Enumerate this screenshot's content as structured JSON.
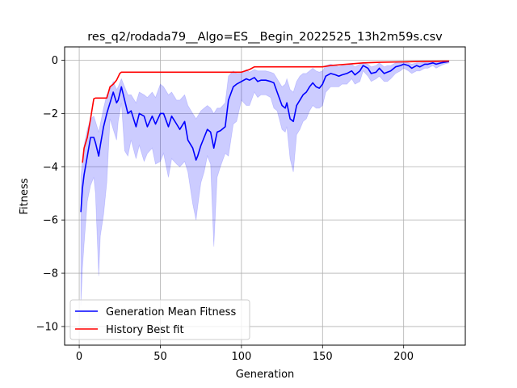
{
  "chart_data": {
    "type": "line",
    "title": "res_q2/rodada79__Algo=ES__Begin_2022525_13h2m59s.csv",
    "xlabel": "Generation",
    "ylabel": "Fitness",
    "xlim": [
      -9,
      238
    ],
    "ylim": [
      -10.7,
      0.5
    ],
    "xticks": [
      0,
      50,
      100,
      150,
      200
    ],
    "yticks": [
      0,
      -2,
      -4,
      -6,
      -8,
      -10
    ],
    "grid": true,
    "legend_position": "lower-left",
    "colors": {
      "mean": "#0000ff",
      "best": "#ff0000",
      "band": "#0000ff"
    },
    "series": [
      {
        "name": "Generation Mean Fitness",
        "x": [
          1,
          2,
          3,
          5,
          7,
          9,
          10,
          12,
          13,
          15,
          17,
          19,
          21,
          23,
          24,
          26,
          28,
          30,
          32,
          35,
          37,
          40,
          42,
          45,
          47,
          50,
          52,
          55,
          57,
          60,
          62,
          65,
          67,
          70,
          72,
          73,
          75,
          77,
          79,
          81,
          83,
          85,
          87,
          90,
          92,
          95,
          97,
          100,
          103,
          105,
          108,
          110,
          112,
          115,
          118,
          120,
          122,
          125,
          127,
          128,
          130,
          132,
          134,
          136,
          138,
          140,
          142,
          144,
          146,
          148,
          150,
          152,
          155,
          158,
          160,
          162,
          165,
          168,
          170,
          173,
          175,
          178,
          180,
          183,
          185,
          188,
          190,
          192,
          195,
          198,
          200,
          203,
          205,
          208,
          210,
          213,
          215,
          218,
          220,
          223,
          225,
          228
        ],
        "y": [
          -5.7,
          -4.8,
          -4.3,
          -3.6,
          -2.9,
          -2.9,
          -3.1,
          -3.6,
          -3.2,
          -2.5,
          -2.0,
          -1.6,
          -1.2,
          -1.6,
          -1.5,
          -1.0,
          -1.5,
          -2.0,
          -1.9,
          -2.5,
          -2.0,
          -2.1,
          -2.5,
          -2.1,
          -2.4,
          -2.0,
          -2.0,
          -2.5,
          -2.1,
          -2.4,
          -2.6,
          -2.3,
          -3.0,
          -3.3,
          -3.75,
          -3.6,
          -3.2,
          -2.9,
          -2.6,
          -2.7,
          -3.3,
          -2.7,
          -2.65,
          -2.5,
          -1.5,
          -1.0,
          -0.9,
          -0.8,
          -0.7,
          -0.75,
          -0.65,
          -0.8,
          -0.75,
          -0.75,
          -0.8,
          -0.85,
          -1.2,
          -1.7,
          -1.8,
          -1.6,
          -2.2,
          -2.3,
          -1.7,
          -1.5,
          -1.3,
          -1.2,
          -1.0,
          -0.85,
          -1.0,
          -1.05,
          -0.9,
          -0.6,
          -0.5,
          -0.55,
          -0.6,
          -0.55,
          -0.5,
          -0.4,
          -0.55,
          -0.4,
          -0.2,
          -0.3,
          -0.5,
          -0.45,
          -0.3,
          -0.5,
          -0.45,
          -0.4,
          -0.25,
          -0.2,
          -0.15,
          -0.2,
          -0.3,
          -0.2,
          -0.25,
          -0.15,
          -0.15,
          -0.1,
          -0.15,
          -0.1,
          -0.08,
          -0.05
        ]
      },
      {
        "name": "History Best fit",
        "x": [
          2,
          3,
          5,
          7,
          9,
          10,
          15,
          17,
          19,
          21,
          23,
          25,
          26,
          40,
          50,
          60,
          80,
          100,
          105,
          108,
          110,
          130,
          150,
          155,
          165,
          175,
          185,
          200,
          210,
          220,
          228
        ],
        "y": [
          -3.85,
          -3.3,
          -2.9,
          -2.2,
          -1.45,
          -1.42,
          -1.42,
          -1.42,
          -1.0,
          -0.9,
          -0.75,
          -0.5,
          -0.45,
          -0.45,
          -0.45,
          -0.45,
          -0.45,
          -0.45,
          -0.35,
          -0.25,
          -0.25,
          -0.25,
          -0.25,
          -0.2,
          -0.15,
          -0.1,
          -0.08,
          -0.06,
          -0.05,
          -0.04,
          -0.03
        ]
      }
    ],
    "band": {
      "x": [
        1,
        2,
        3,
        5,
        7,
        9,
        10,
        12,
        13,
        15,
        17,
        19,
        21,
        23,
        24,
        26,
        28,
        30,
        32,
        35,
        37,
        40,
        42,
        45,
        47,
        50,
        52,
        55,
        57,
        60,
        62,
        65,
        67,
        70,
        72,
        73,
        75,
        77,
        79,
        81,
        83,
        85,
        87,
        90,
        92,
        95,
        97,
        100,
        103,
        105,
        108,
        110,
        112,
        115,
        118,
        120,
        122,
        125,
        127,
        128,
        130,
        132,
        134,
        136,
        138,
        140,
        142,
        144,
        146,
        148,
        150,
        152,
        155,
        158,
        160,
        162,
        165,
        168,
        170,
        173,
        175,
        178,
        180,
        183,
        185,
        188,
        190,
        192,
        195,
        198,
        200,
        203,
        205,
        208,
        210,
        213,
        215,
        218,
        220,
        223,
        225,
        228
      ],
      "upper": [
        -4.4,
        -3.7,
        -3.2,
        -2.6,
        -2.2,
        -2.1,
        -2.3,
        -2.7,
        -2.4,
        -1.8,
        -1.3,
        -1.1,
        -0.8,
        -1.1,
        -1.0,
        -0.7,
        -1.0,
        -1.3,
        -1.3,
        -1.6,
        -1.2,
        -1.3,
        -1.4,
        -1.2,
        -1.4,
        -0.9,
        -1.0,
        -1.3,
        -1.2,
        -1.5,
        -1.5,
        -1.3,
        -1.7,
        -2.0,
        -2.2,
        -2.1,
        -1.9,
        -1.8,
        -1.7,
        -1.8,
        -2.0,
        -1.8,
        -1.8,
        -1.6,
        -0.6,
        -0.4,
        -0.5,
        -0.5,
        -0.35,
        -0.45,
        -0.35,
        -0.4,
        -0.4,
        -0.4,
        -0.45,
        -0.5,
        -0.7,
        -1.0,
        -0.9,
        -0.7,
        -1.1,
        -1.2,
        -0.8,
        -0.6,
        -0.5,
        -0.5,
        -0.4,
        -0.3,
        -0.4,
        -0.45,
        -0.4,
        -0.2,
        -0.15,
        -0.2,
        -0.25,
        -0.2,
        -0.2,
        -0.15,
        -0.25,
        -0.15,
        -0.1,
        -0.15,
        -0.25,
        -0.2,
        -0.1,
        -0.25,
        -0.2,
        -0.2,
        -0.1,
        -0.1,
        -0.07,
        -0.1,
        -0.15,
        -0.1,
        -0.1,
        -0.07,
        -0.07,
        -0.05,
        -0.07,
        -0.05,
        -0.04,
        -0.03
      ],
      "lower": [
        -9.2,
        -7.8,
        -6.9,
        -5.3,
        -4.7,
        -4.4,
        -5.0,
        -8.1,
        -6.6,
        -5.8,
        -4.6,
        -2.2,
        -2.6,
        -3.0,
        -2.3,
        -1.6,
        -3.4,
        -3.6,
        -3.0,
        -3.7,
        -3.2,
        -3.8,
        -3.5,
        -3.3,
        -3.9,
        -3.8,
        -3.5,
        -4.4,
        -3.7,
        -3.9,
        -4.0,
        -3.8,
        -4.2,
        -5.4,
        -6.0,
        -5.5,
        -4.6,
        -4.2,
        -3.6,
        -3.9,
        -7.0,
        -4.4,
        -4.0,
        -3.5,
        -3.6,
        -2.4,
        -2.3,
        -1.5,
        -1.7,
        -1.7,
        -1.2,
        -1.4,
        -1.3,
        -1.3,
        -1.4,
        -1.8,
        -1.9,
        -2.6,
        -2.7,
        -2.5,
        -3.7,
        -4.2,
        -2.8,
        -2.6,
        -2.3,
        -2.2,
        -1.9,
        -1.7,
        -1.8,
        -1.8,
        -1.7,
        -1.2,
        -1.0,
        -1.0,
        -1.0,
        -0.9,
        -0.9,
        -0.7,
        -0.9,
        -0.8,
        -0.4,
        -0.6,
        -0.8,
        -0.7,
        -0.6,
        -0.8,
        -0.8,
        -0.7,
        -0.5,
        -0.4,
        -0.3,
        -0.4,
        -0.5,
        -0.4,
        -0.4,
        -0.3,
        -0.3,
        -0.2,
        -0.3,
        -0.2,
        -0.15,
        -0.1
      ]
    }
  }
}
